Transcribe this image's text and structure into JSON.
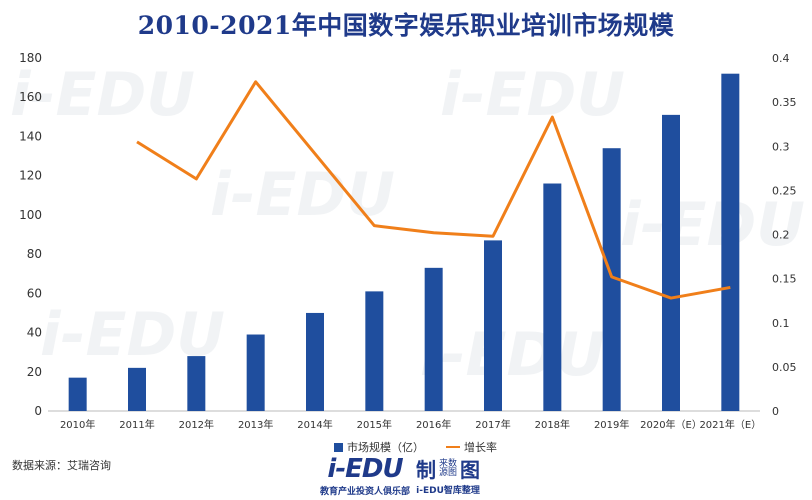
{
  "title": "2010-2021年中国数字娱乐职业培训市场规模",
  "source": "数据来源：艾瑞咨询",
  "watermark": "i-EDU",
  "footer": {
    "logo": "i-EDU",
    "tagline": "教育产业投资人俱乐部",
    "badge": "制",
    "badge_top": "来数",
    "badge_bottom": "源图",
    "badge_char": "图",
    "sub": "i-EDU智库整理"
  },
  "colors": {
    "bar": "#1f4e9e",
    "line": "#f07f1a",
    "title": "#1f3a8a"
  },
  "chart_data": {
    "type": "bar+line",
    "title": "2010-2021年中国数字娱乐职业培训市场规模",
    "categories": [
      "2010年",
      "2011年",
      "2012年",
      "2013年",
      "2014年",
      "2015年",
      "2016年",
      "2017年",
      "2018年",
      "2019年",
      "2020年（E）",
      "2021年（E）"
    ],
    "series": [
      {
        "name": "市场规模（亿）",
        "type": "bar",
        "axis": "left",
        "values": [
          17,
          22,
          28,
          39,
          50,
          61,
          73,
          87,
          116,
          134,
          151,
          172
        ]
      },
      {
        "name": "增长率",
        "type": "line",
        "axis": "right",
        "values": [
          null,
          0.305,
          0.263,
          0.373,
          null,
          0.21,
          0.202,
          0.198,
          0.333,
          0.152,
          0.128,
          0.14
        ]
      }
    ],
    "y_left": {
      "lim": [
        0,
        180
      ],
      "ticks": [
        "0",
        "20",
        "40",
        "60",
        "80",
        "100",
        "120",
        "140",
        "160",
        "180"
      ]
    },
    "y_right": {
      "lim": [
        0,
        0.4
      ],
      "ticks": [
        "0",
        "0.05",
        "0.1",
        "0.15",
        "0.2",
        "0.25",
        "0.3",
        "0.35",
        "0.4"
      ]
    },
    "grid": false,
    "legend": "bottom"
  }
}
